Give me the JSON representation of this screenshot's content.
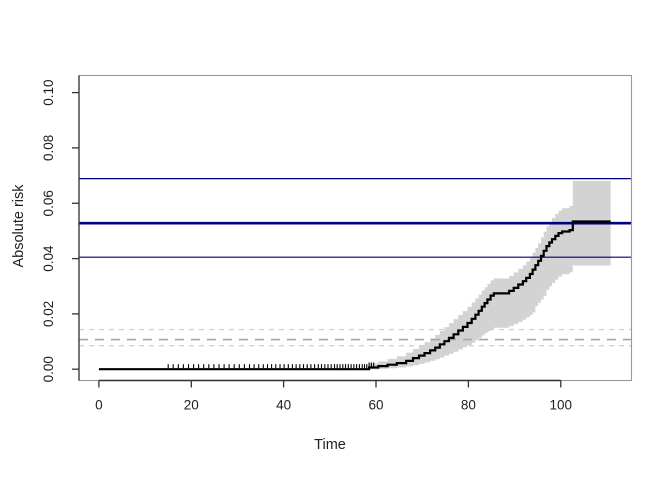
{
  "chart_data": {
    "type": "line",
    "subtype": "step",
    "title": "",
    "xlabel": "Time",
    "ylabel": "Absolute risk",
    "xlim": [
      -4.3,
      115.3
    ],
    "ylim": [
      -0.0041,
      0.1062
    ],
    "grid": false,
    "legend": null,
    "x_ticks": {
      "values": [
        0,
        20,
        40,
        60,
        80,
        100
      ],
      "labels": [
        "0",
        "20",
        "40",
        "60",
        "80",
        "100"
      ]
    },
    "y_ticks": {
      "values": [
        0,
        0.02,
        0.04,
        0.06,
        0.08,
        0.1
      ],
      "labels": [
        "0.00",
        "0.02",
        "0.04",
        "0.06",
        "0.08",
        "0.10"
      ]
    },
    "colors": {
      "curve": "#000000",
      "band": "#d3d3d3",
      "reference_lines": "#000080",
      "dashed_mid": "#a6a6a6",
      "dashed_outer": "#d2d2d2",
      "axis": "#333333",
      "box": "#999999",
      "text": "#1f1f1f"
    },
    "series": [
      {
        "name": "absolute-risk-step-curve",
        "type": "step",
        "points": [
          [
            0,
            0
          ],
          [
            58.5,
            0.0006
          ],
          [
            60.5,
            0.0011
          ],
          [
            62.5,
            0.0016
          ],
          [
            64.5,
            0.0022
          ],
          [
            66.5,
            0.003
          ],
          [
            68,
            0.004
          ],
          [
            69.3,
            0.0049
          ],
          [
            70.5,
            0.0058
          ],
          [
            71.7,
            0.0068
          ],
          [
            72.8,
            0.0078
          ],
          [
            73.8,
            0.009
          ],
          [
            74.8,
            0.0101
          ],
          [
            75.8,
            0.0113
          ],
          [
            76.8,
            0.0126
          ],
          [
            77.8,
            0.014
          ],
          [
            78.8,
            0.0153
          ],
          [
            79.8,
            0.0167
          ],
          [
            80.7,
            0.0182
          ],
          [
            81.5,
            0.0197
          ],
          [
            82.2,
            0.0211
          ],
          [
            82.9,
            0.0226
          ],
          [
            83.5,
            0.0239
          ],
          [
            84.1,
            0.0252
          ],
          [
            84.8,
            0.0266
          ],
          [
            85.5,
            0.0274
          ],
          [
            88.8,
            0.0283
          ],
          [
            89.8,
            0.0294
          ],
          [
            90.8,
            0.0306
          ],
          [
            91.8,
            0.0318
          ],
          [
            92.5,
            0.033
          ],
          [
            93.3,
            0.0344
          ],
          [
            93.9,
            0.036
          ],
          [
            94.5,
            0.0376
          ],
          [
            95.1,
            0.0392
          ],
          [
            95.7,
            0.041
          ],
          [
            96.3,
            0.0428
          ],
          [
            96.9,
            0.0445
          ],
          [
            97.5,
            0.0458
          ],
          [
            98.1,
            0.047
          ],
          [
            98.8,
            0.0482
          ],
          [
            99.5,
            0.0492
          ],
          [
            100.3,
            0.0498
          ],
          [
            101.9,
            0.0503
          ],
          [
            102.6,
            0.0534
          ],
          [
            110.8,
            0.0534
          ]
        ]
      }
    ],
    "band": {
      "name": "confidence-band",
      "points": [
        [
          58.5,
          0.0,
          0.002
        ],
        [
          60.5,
          0.0001,
          0.0028
        ],
        [
          62.5,
          0.0003,
          0.0037
        ],
        [
          64.5,
          0.0006,
          0.0047
        ],
        [
          66.5,
          0.001,
          0.006
        ],
        [
          68,
          0.0014,
          0.0073
        ],
        [
          69.3,
          0.0019,
          0.0086
        ],
        [
          70.5,
          0.0024,
          0.0098
        ],
        [
          71.7,
          0.003,
          0.0111
        ],
        [
          72.8,
          0.0036,
          0.0124
        ],
        [
          73.8,
          0.0042,
          0.0138
        ],
        [
          74.8,
          0.0049,
          0.0152
        ],
        [
          75.8,
          0.0056,
          0.0166
        ],
        [
          76.8,
          0.0063,
          0.0181
        ],
        [
          77.8,
          0.0071,
          0.0196
        ],
        [
          78.8,
          0.0079,
          0.021
        ],
        [
          79.8,
          0.0087,
          0.0225
        ],
        [
          80.7,
          0.0096,
          0.0241
        ],
        [
          81.5,
          0.0105,
          0.0256
        ],
        [
          82.2,
          0.0113,
          0.027
        ],
        [
          82.9,
          0.0122,
          0.0284
        ],
        [
          83.5,
          0.013,
          0.0296
        ],
        [
          84.1,
          0.0137,
          0.0308
        ],
        [
          84.8,
          0.0145,
          0.0321
        ],
        [
          85.5,
          0.015,
          0.0328
        ],
        [
          88.8,
          0.0156,
          0.0337
        ],
        [
          89.8,
          0.0163,
          0.035
        ],
        [
          90.8,
          0.0171,
          0.0363
        ],
        [
          91.8,
          0.0179,
          0.0376
        ],
        [
          92.5,
          0.0187,
          0.0389
        ],
        [
          93.3,
          0.0196,
          0.0404
        ],
        [
          93.9,
          0.0205,
          0.0421
        ],
        [
          94.5,
          0.0228,
          0.0438
        ],
        [
          95.1,
          0.024,
          0.0456
        ],
        [
          95.7,
          0.0252,
          0.0476
        ],
        [
          96.3,
          0.0265,
          0.0497
        ],
        [
          96.9,
          0.0287,
          0.0517
        ],
        [
          97.5,
          0.03,
          0.0533
        ],
        [
          98.1,
          0.0312,
          0.0547
        ],
        [
          98.8,
          0.0324,
          0.0561
        ],
        [
          99.5,
          0.0335,
          0.0573
        ],
        [
          100.3,
          0.0343,
          0.0582
        ],
        [
          101.9,
          0.035,
          0.059
        ],
        [
          102.6,
          0.0375,
          0.0681
        ],
        [
          110.8,
          0.0375,
          0.0681
        ]
      ]
    },
    "hlines": [
      {
        "y": 0.0689,
        "width": 1.2
      },
      {
        "y": 0.0528,
        "width": 2.6
      },
      {
        "y": 0.0405,
        "width": 1.2
      }
    ],
    "dashed_hlines": [
      {
        "y": 0.0143,
        "tone": "outer"
      },
      {
        "y": 0.0107,
        "tone": "mid"
      },
      {
        "y": 0.0085,
        "tone": "outer"
      }
    ],
    "censor_times": [
      15.0,
      16.1,
      17.2,
      18.3,
      19.4,
      20.5,
      21.6,
      22.7,
      23.8,
      24.9,
      26.0,
      27.1,
      28.2,
      29.3,
      30.4,
      31.5,
      32.6,
      33.6,
      34.6,
      35.6,
      36.5,
      37.4,
      38.3,
      39.2,
      40.1,
      41.0,
      41.9,
      42.7,
      43.5,
      44.3,
      45.1,
      45.9,
      46.7,
      47.5,
      48.2,
      48.9,
      49.6,
      50.3,
      51.0,
      51.6,
      52.2,
      52.8,
      53.4,
      54.0,
      54.6,
      55.2,
      55.8,
      56.4,
      57.0,
      57.5,
      58.0,
      58.5,
      59.0,
      59.5
    ]
  }
}
